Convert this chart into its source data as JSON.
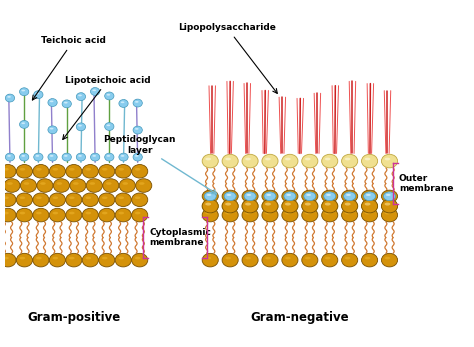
{
  "bg_color": "#ffffff",
  "gram_positive_label": "Gram-positive",
  "gram_negative_label": "Gram-negative",
  "labels": {
    "teichoic_acid": "Teichoic acid",
    "lipoteichoic_acid": "Lipoteichoic acid",
    "lipopolysaccharide": "Lipopolysaccharide",
    "peptidoglycan": "Peptidoglycan\nlayer",
    "cytoplasmic": "Cytoplasmic\nmembrane",
    "outer_membrane": "Outer\nmembrane"
  },
  "colors": {
    "gold_light": "#D4920A",
    "gold_mid": "#C07808",
    "gold_dark": "#7A5000",
    "gold_highlight": "#F0B830",
    "cream_light": "#F0E090",
    "cream_mid": "#E8D070",
    "tail_orange": "#D07830",
    "tail_light": "#E89050",
    "purple_strand": "#9080CC",
    "green_strand": "#60A040",
    "blue_strand": "#70B8D0",
    "blue_bead_light": "#C0E8FF",
    "blue_bead_mid": "#88CCEE",
    "blue_bead_dark": "#4499BB",
    "blue_bead_white": "#E8F8FF",
    "red_lps": "#CC2020",
    "red_lps_light": "#EE5050",
    "pink_bracket": "#CC3399",
    "lc": "#000000"
  },
  "figsize": [
    4.74,
    3.47
  ],
  "dpi": 100
}
